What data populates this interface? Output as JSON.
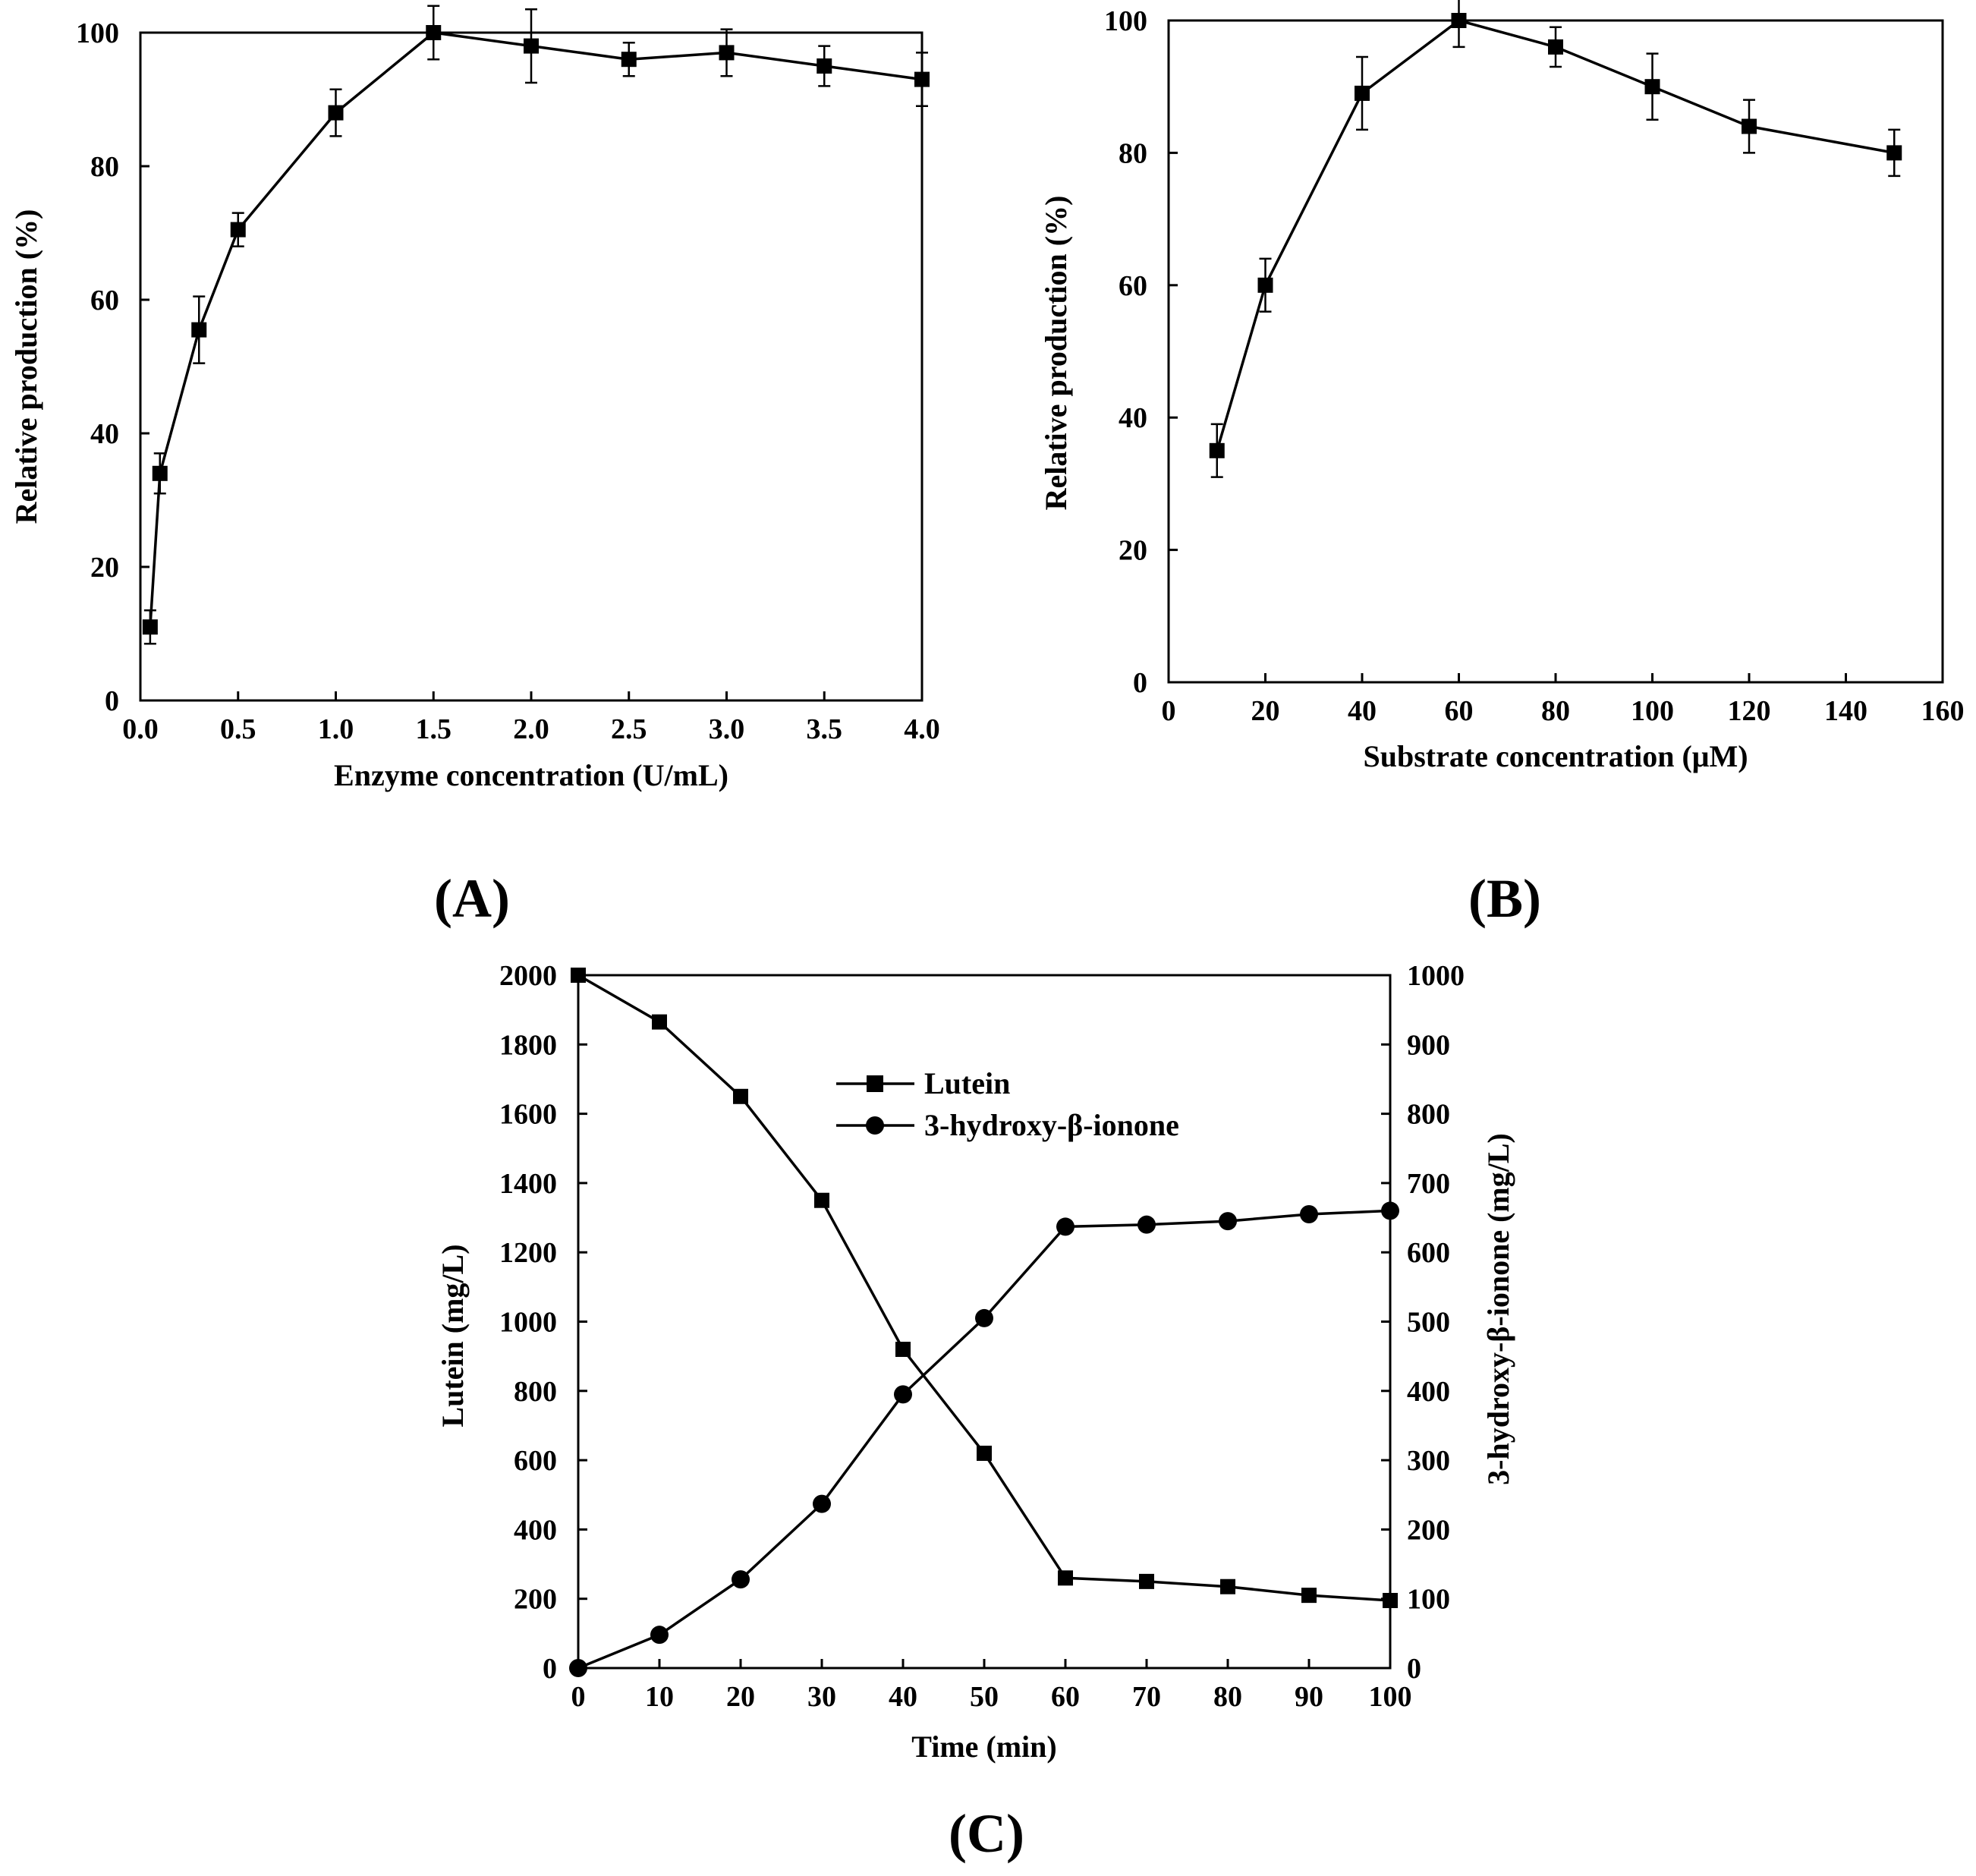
{
  "chart_data": [
    {
      "id": "A",
      "type": "line",
      "panel_label": "(A)",
      "xlabel": "Enzyme concentration (U/mL)",
      "ylabel": "Relative production (%)",
      "xlim": [
        0,
        4
      ],
      "ylim": [
        0,
        100
      ],
      "xticks": [
        "0.0",
        "0.5",
        "1.0",
        "1.5",
        "2.0",
        "2.5",
        "3.0",
        "3.5",
        "4.0"
      ],
      "yticks": [
        "0",
        "20",
        "40",
        "60",
        "80",
        "100"
      ],
      "series": [
        {
          "name": "Relative production",
          "marker": "square",
          "x": [
            0.05,
            0.1,
            0.3,
            0.5,
            1.0,
            1.5,
            2.0,
            2.5,
            3.0,
            3.5,
            4.0
          ],
          "y": [
            11,
            34,
            55.5,
            70.5,
            88,
            100,
            98,
            96,
            97,
            95,
            93
          ],
          "error": [
            2.5,
            3,
            5,
            2.5,
            3.5,
            4,
            5.5,
            2.5,
            3.5,
            3,
            4
          ]
        }
      ]
    },
    {
      "id": "B",
      "type": "line",
      "panel_label": "(B)",
      "xlabel": "Substrate concentration (μM)",
      "ylabel": "Relative production (%)",
      "xlim": [
        0,
        160
      ],
      "ylim": [
        0,
        100
      ],
      "xticks": [
        "0",
        "20",
        "40",
        "60",
        "80",
        "100",
        "120",
        "140",
        "160"
      ],
      "yticks": [
        "0",
        "20",
        "40",
        "60",
        "80",
        "100"
      ],
      "series": [
        {
          "name": "Relative production",
          "marker": "square",
          "x": [
            10,
            20,
            40,
            60,
            80,
            100,
            120,
            150
          ],
          "y": [
            35,
            60,
            89,
            100,
            96,
            90,
            84,
            80
          ],
          "error": [
            4,
            4,
            5.5,
            4,
            3,
            5,
            4,
            3.5
          ]
        }
      ]
    },
    {
      "id": "C",
      "type": "line",
      "panel_label": "(C)",
      "xlabel": "Time (min)",
      "ylabel": "Lutein (mg/L)",
      "ylabel_right": "3-hydroxy-β-ionone (mg/L)",
      "xlim": [
        0,
        100
      ],
      "ylim": [
        0,
        2000
      ],
      "ylim_right": [
        0,
        1000
      ],
      "xticks": [
        "0",
        "10",
        "20",
        "30",
        "40",
        "50",
        "60",
        "70",
        "80",
        "90",
        "100"
      ],
      "yticks": [
        "0",
        "200",
        "400",
        "600",
        "800",
        "1000",
        "1200",
        "1400",
        "1600",
        "1800",
        "2000"
      ],
      "yticks_right": [
        "0",
        "100",
        "200",
        "300",
        "400",
        "500",
        "600",
        "700",
        "800",
        "900",
        "1000"
      ],
      "series": [
        {
          "name": "Lutein",
          "axis": "left",
          "marker": "square",
          "x": [
            0,
            10,
            20,
            30,
            40,
            50,
            60,
            70,
            80,
            90,
            100
          ],
          "y": [
            2000,
            1865,
            1650,
            1350,
            920,
            620,
            260,
            250,
            235,
            210,
            195
          ]
        },
        {
          "name": "3-hydroxy-β-ionone",
          "axis": "right",
          "marker": "circle",
          "x": [
            0,
            10,
            20,
            30,
            40,
            50,
            60,
            70,
            80,
            90,
            100
          ],
          "y": [
            0,
            48,
            128,
            237,
            395,
            505,
            637,
            640,
            645,
            655,
            660
          ]
        }
      ],
      "legend": [
        "Lutein",
        "3-hydroxy-β-ionone"
      ]
    }
  ]
}
